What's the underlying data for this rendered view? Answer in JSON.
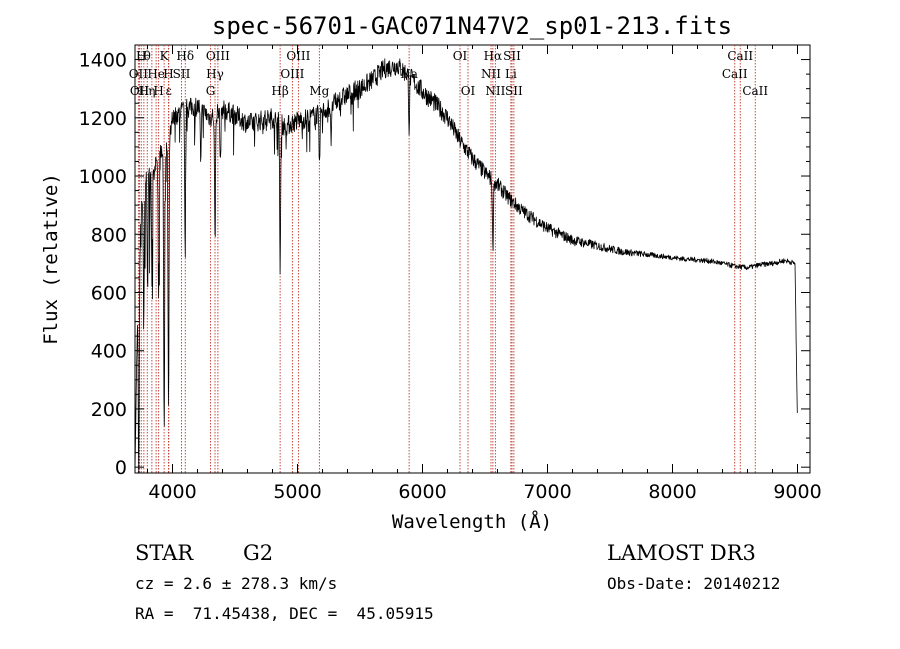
{
  "chart_data": {
    "type": "line",
    "title": "spec-56701-GAC071N47V2_sp01-213.fits",
    "xlabel": "Wavelength (Å)",
    "ylabel": "Flux (relative)",
    "xlim": [
      3700,
      9100
    ],
    "ylim": [
      -20,
      1450
    ],
    "x_ticks": [
      4000,
      5000,
      6000,
      7000,
      8000,
      9000
    ],
    "y_ticks": [
      0,
      200,
      400,
      600,
      800,
      1000,
      1200,
      1400
    ],
    "grid": false,
    "spectrum_envelope": {
      "x": [
        3700,
        3720,
        3750,
        3800,
        3850,
        3900,
        3950,
        4000,
        4100,
        4200,
        4300,
        4400,
        4500,
        4600,
        4700,
        4800,
        4900,
        5000,
        5100,
        5200,
        5300,
        5400,
        5500,
        5600,
        5700,
        5800,
        5850,
        5900,
        6000,
        6100,
        6200,
        6300,
        6400,
        6500,
        6600,
        6700,
        6800,
        6900,
        7000,
        7100,
        7200,
        7300,
        7400,
        7500,
        7600,
        7700,
        7800,
        7900,
        8000,
        8100,
        8200,
        8300,
        8400,
        8500,
        8600,
        8700,
        8800,
        8900,
        8980,
        9000
      ],
      "y": [
        20,
        500,
        900,
        1050,
        1000,
        1100,
        1080,
        1200,
        1230,
        1240,
        1200,
        1230,
        1210,
        1180,
        1190,
        1200,
        1170,
        1190,
        1200,
        1220,
        1250,
        1280,
        1300,
        1330,
        1370,
        1380,
        1360,
        1340,
        1290,
        1250,
        1200,
        1120,
        1060,
        1010,
        970,
        920,
        880,
        850,
        820,
        800,
        780,
        770,
        760,
        750,
        740,
        735,
        730,
        725,
        720,
        715,
        712,
        708,
        700,
        690,
        685,
        695,
        700,
        710,
        700,
        120
      ]
    },
    "absorption_features": [
      {
        "x": 3730,
        "depth": 700
      },
      {
        "x": 3770,
        "depth": 500
      },
      {
        "x": 3800,
        "depth": 450
      },
      {
        "x": 3835,
        "depth": 350
      },
      {
        "x": 3889,
        "depth": 500
      },
      {
        "x": 3933,
        "depth": 950
      },
      {
        "x": 3968,
        "depth": 950
      },
      {
        "x": 4101,
        "depth": 500
      },
      {
        "x": 4226,
        "depth": 200
      },
      {
        "x": 4340,
        "depth": 450
      },
      {
        "x": 4383,
        "depth": 180
      },
      {
        "x": 4861,
        "depth": 520
      },
      {
        "x": 5175,
        "depth": 200
      },
      {
        "x": 5270,
        "depth": 120
      },
      {
        "x": 5893,
        "depth": 180
      },
      {
        "x": 6563,
        "depth": 250
      }
    ],
    "spectral_lines": [
      {
        "x": 3727,
        "row": 2,
        "label": "OII"
      },
      {
        "x": 3736,
        "row": 3,
        "label": "OII"
      },
      {
        "x": 3750,
        "row": 1,
        "label": "H"
      },
      {
        "x": 3771,
        "row": 3,
        "label": "H"
      },
      {
        "x": 3798,
        "row": 1,
        "label": "θ"
      },
      {
        "x": 3835,
        "row": 3,
        "label": "η"
      },
      {
        "x": 3869,
        "row": 2,
        "label": "He"
      },
      {
        "x": 3889,
        "row": 3,
        "label": "H"
      },
      {
        "x": 3933,
        "row": 1,
        "label": "K"
      },
      {
        "x": 3968,
        "row": 2,
        "label": "H"
      },
      {
        "x": 3970,
        "row": 3,
        "label": "ε"
      },
      {
        "x": 4072,
        "row": 2,
        "label": "SII"
      },
      {
        "x": 4102,
        "row": 1,
        "label": "Hδ"
      },
      {
        "x": 4304,
        "row": 3,
        "label": "G"
      },
      {
        "x": 4340,
        "row": 2,
        "label": "Hγ"
      },
      {
        "x": 4363,
        "row": 1,
        "label": "OIII"
      },
      {
        "x": 4861,
        "row": 3,
        "label": "Hβ"
      },
      {
        "x": 4959,
        "row": 2,
        "label": "OIII"
      },
      {
        "x": 5007,
        "row": 1,
        "label": "OIII"
      },
      {
        "x": 5175,
        "row": 3,
        "label": "Mg"
      },
      {
        "x": 5893,
        "row": 2,
        "label": "Na"
      },
      {
        "x": 6300,
        "row": 1,
        "label": "OI"
      },
      {
        "x": 6364,
        "row": 3,
        "label": "OI"
      },
      {
        "x": 6548,
        "row": 2,
        "label": "NII"
      },
      {
        "x": 6563,
        "row": 1,
        "label": "Hα"
      },
      {
        "x": 6583,
        "row": 3,
        "label": "NII"
      },
      {
        "x": 6707,
        "row": 2,
        "label": "Li"
      },
      {
        "x": 6716,
        "row": 1,
        "label": "SII"
      },
      {
        "x": 6731,
        "row": 3,
        "label": "SII"
      },
      {
        "x": 8498,
        "row": 2,
        "label": "CaII"
      },
      {
        "x": 8542,
        "row": 1,
        "label": "CaII"
      },
      {
        "x": 8662,
        "row": 3,
        "label": "CaII"
      }
    ],
    "line_color": "#000000",
    "marker_color": "#c0392b"
  },
  "info": {
    "object_class": "STAR",
    "subclass": "G2",
    "survey": "LAMOST DR3",
    "redshift_text": "cz = 2.6 ± 278.3 km/s",
    "obs_date": "Obs-Date: 20140212",
    "coords": "RA =  71.45438, DEC =  45.05915"
  }
}
